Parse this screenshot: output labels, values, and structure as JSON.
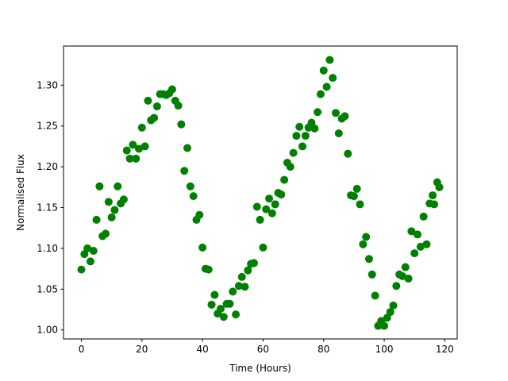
{
  "chart_data": {
    "type": "scatter",
    "title": "",
    "xlabel": "Time (Hours)",
    "ylabel": "Normalised Flux",
    "xlim": [
      -5.9,
      124.1
    ],
    "ylim": [
      0.989,
      1.348
    ],
    "xticks": [
      0,
      20,
      40,
      60,
      80,
      100,
      120
    ],
    "xtick_labels": [
      "0",
      "20",
      "40",
      "60",
      "80",
      "100",
      "120"
    ],
    "yticks": [
      1.0,
      1.05,
      1.1,
      1.15,
      1.2,
      1.25,
      1.3
    ],
    "ytick_labels": [
      "1.00",
      "1.05",
      "1.10",
      "1.15",
      "1.20",
      "1.25",
      "1.30"
    ],
    "grid": false,
    "marker_color": "#008000",
    "x": [
      0,
      1,
      2,
      3,
      4,
      5,
      6,
      7,
      8,
      9,
      10,
      11,
      12,
      13,
      14,
      15,
      16,
      17,
      18,
      19,
      20,
      21,
      22,
      23,
      24,
      25,
      26,
      27,
      28,
      29,
      30,
      31,
      32,
      33,
      34,
      35,
      36,
      37,
      38,
      39,
      40,
      41,
      42,
      43,
      44,
      45,
      46,
      47,
      48,
      49,
      50,
      51,
      52,
      53,
      54,
      55,
      56,
      57,
      58,
      59,
      60,
      61,
      62,
      63,
      64,
      65,
      66,
      67,
      68,
      69,
      70,
      71,
      72,
      73,
      74,
      75,
      76,
      77,
      78,
      79,
      80,
      81,
      82,
      83,
      84,
      85,
      86,
      87,
      88,
      89,
      90,
      91,
      92,
      93,
      94,
      95,
      96,
      97,
      98,
      99,
      100,
      101,
      102,
      103,
      104,
      105,
      106,
      107,
      108,
      109,
      110,
      111,
      112,
      113,
      114,
      115,
      116,
      116.5,
      117.5,
      118.2
    ],
    "y": [
      1.074,
      1.093,
      1.1,
      1.084,
      1.097,
      1.135,
      1.176,
      1.115,
      1.118,
      1.157,
      1.138,
      1.147,
      1.176,
      1.155,
      1.16,
      1.22,
      1.21,
      1.227,
      1.21,
      1.222,
      1.248,
      1.225,
      1.281,
      1.257,
      1.26,
      1.274,
      1.289,
      1.289,
      1.288,
      1.29,
      1.295,
      1.281,
      1.275,
      1.252,
      1.195,
      1.223,
      1.176,
      1.164,
      1.135,
      1.141,
      1.101,
      1.075,
      1.074,
      1.031,
      1.043,
      1.02,
      1.026,
      1.016,
      1.032,
      1.032,
      1.047,
      1.019,
      1.054,
      1.065,
      1.053,
      1.073,
      1.081,
      1.082,
      1.151,
      1.135,
      1.101,
      1.148,
      1.161,
      1.143,
      1.154,
      1.168,
      1.166,
      1.184,
      1.205,
      1.2,
      1.217,
      1.238,
      1.249,
      1.225,
      1.238,
      1.248,
      1.254,
      1.247,
      1.267,
      1.289,
      1.318,
      1.298,
      1.331,
      1.309,
      1.266,
      1.241,
      1.259,
      1.262,
      1.216,
      1.165,
      1.164,
      1.173,
      1.154,
      1.105,
      1.114,
      1.087,
      1.068,
      1.042,
      1.005,
      1.011,
      1.005,
      1.015,
      1.022,
      1.03,
      1.054,
      1.068,
      1.066,
      1.077,
      1.063,
      1.121,
      1.094,
      1.117,
      1.102,
      1.139,
      1.105,
      1.155,
      1.165,
      1.154,
      1.181,
      1.175
    ]
  }
}
